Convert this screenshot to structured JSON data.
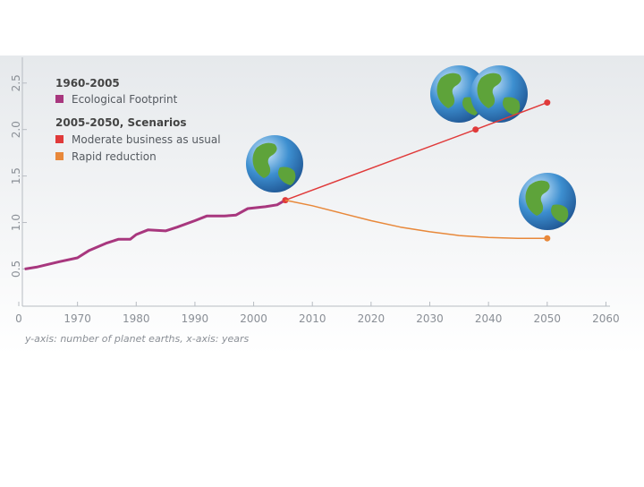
{
  "chart_data": {
    "type": "line",
    "legend_headers": [
      "1960-2005",
      "2005-2050, Scenarios"
    ],
    "caption": "y-axis: number of planet earths, x-axis: years",
    "xlim": [
      1960,
      2061
    ],
    "ylim": [
      0.1,
      2.7
    ],
    "xticks": [
      {
        "value": 1960,
        "label": "0"
      },
      1970,
      1980,
      1990,
      2000,
      2010,
      2020,
      2030,
      2040,
      2050,
      2060
    ],
    "yticks": [
      0.5,
      1.0,
      1.5,
      2.0,
      2.5
    ],
    "series": [
      {
        "name": "Ecological Footprint",
        "color": "#a8377e",
        "markers": "none",
        "x": [
          1961,
          1963,
          1965,
          1967,
          1970,
          1972,
          1975,
          1977,
          1979,
          1980,
          1982,
          1985,
          1987,
          1990,
          1992,
          1995,
          1997,
          1999,
          2002,
          2004,
          2005.4
        ],
        "values": [
          0.5,
          0.52,
          0.55,
          0.58,
          0.62,
          0.7,
          0.78,
          0.82,
          0.82,
          0.87,
          0.92,
          0.91,
          0.95,
          1.02,
          1.07,
          1.07,
          1.08,
          1.15,
          1.17,
          1.19,
          1.24
        ]
      },
      {
        "name": "Moderate business as usual",
        "color": "#e03a3a",
        "markers": "all",
        "x": [
          2005.4,
          2037.8,
          2050
        ],
        "values": [
          1.24,
          2.0,
          2.29
        ]
      },
      {
        "name": "Rapid reduction",
        "color": "#e8883a",
        "markers": "end",
        "x": [
          2005.4,
          2010,
          2015,
          2020,
          2025,
          2030,
          2035,
          2040,
          2045,
          2050
        ],
        "values": [
          1.24,
          1.18,
          1.1,
          1.02,
          0.95,
          0.9,
          0.86,
          0.84,
          0.83,
          0.83
        ]
      }
    ]
  }
}
